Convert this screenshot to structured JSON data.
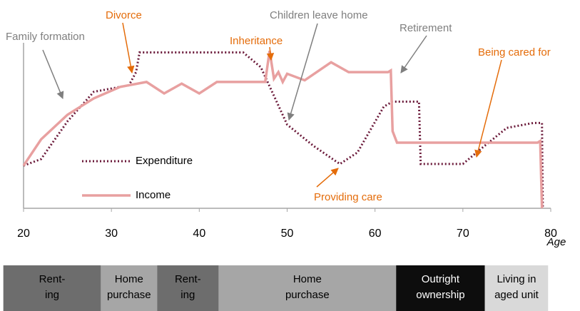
{
  "chart_data": {
    "type": "line",
    "x_label": "Age",
    "xlim": [
      20,
      80
    ],
    "xticks": [
      20,
      30,
      40,
      50,
      60,
      70,
      80
    ],
    "ylim": [
      0,
      100
    ],
    "legend": "lower-left",
    "series": [
      {
        "name": "Expenditure",
        "color": "#6b1a3a",
        "style": "dotted",
        "x": [
          20,
          22,
          25,
          28,
          32,
          32.8,
          33.2,
          45,
          47,
          50,
          53,
          56,
          58,
          61,
          62,
          65,
          65.2,
          70,
          72,
          75,
          78,
          79,
          79.1
        ],
        "values": [
          26,
          30,
          53,
          71,
          75,
          83,
          95,
          95,
          86,
          51,
          38,
          27,
          34,
          62,
          65,
          65,
          27,
          27,
          36,
          49,
          52,
          52,
          0
        ]
      },
      {
        "name": "Income",
        "color": "#e8a0a0",
        "style": "solid",
        "x": [
          20,
          22,
          25,
          28,
          31,
          34,
          36,
          38,
          40,
          42,
          47.5,
          48,
          48.5,
          49,
          49.5,
          50,
          52,
          55,
          57,
          61.5,
          61.8,
          62,
          62.5,
          70,
          78.5,
          78.8,
          79
        ],
        "values": [
          26,
          42,
          57,
          67,
          74,
          77,
          70,
          76,
          70,
          77,
          77,
          96,
          79,
          83,
          77,
          82,
          78,
          89,
          83,
          83,
          84,
          47,
          40,
          40,
          40,
          41,
          0
        ]
      }
    ],
    "annotations": [
      {
        "text": "Family formation",
        "color": "#7f7f7f"
      },
      {
        "text": "Divorce",
        "color": "#e46c0a"
      },
      {
        "text": "Children leave home",
        "color": "#7f7f7f"
      },
      {
        "text": "Inheritance",
        "color": "#e46c0a"
      },
      {
        "text": "Retirement",
        "color": "#7f7f7f"
      },
      {
        "text": "Being cared for",
        "color": "#e46c0a"
      },
      {
        "text": "Providing care",
        "color": "#e46c0a"
      }
    ],
    "stages": [
      {
        "lines": [
          "Rent-",
          "ing"
        ],
        "start": 17.7,
        "end": 28.8,
        "color": "#6d6d6d"
      },
      {
        "lines": [
          "Home",
          "purchase"
        ],
        "start": 28.8,
        "end": 35.2,
        "color": "#a6a6a6"
      },
      {
        "lines": [
          "Rent-",
          "ing"
        ],
        "start": 35.2,
        "end": 42.2,
        "color": "#6d6d6d"
      },
      {
        "lines": [
          "Home",
          "purchase"
        ],
        "start": 42.2,
        "end": 62.4,
        "color": "#a6a6a6"
      },
      {
        "lines": [
          "Outright",
          "ownership"
        ],
        "start": 62.4,
        "end": 72.5,
        "color": "#0d0d0d"
      },
      {
        "lines": [
          "Living in",
          "aged unit"
        ],
        "start": 72.5,
        "end": 79.7,
        "color": "#d9d9d9"
      }
    ]
  }
}
